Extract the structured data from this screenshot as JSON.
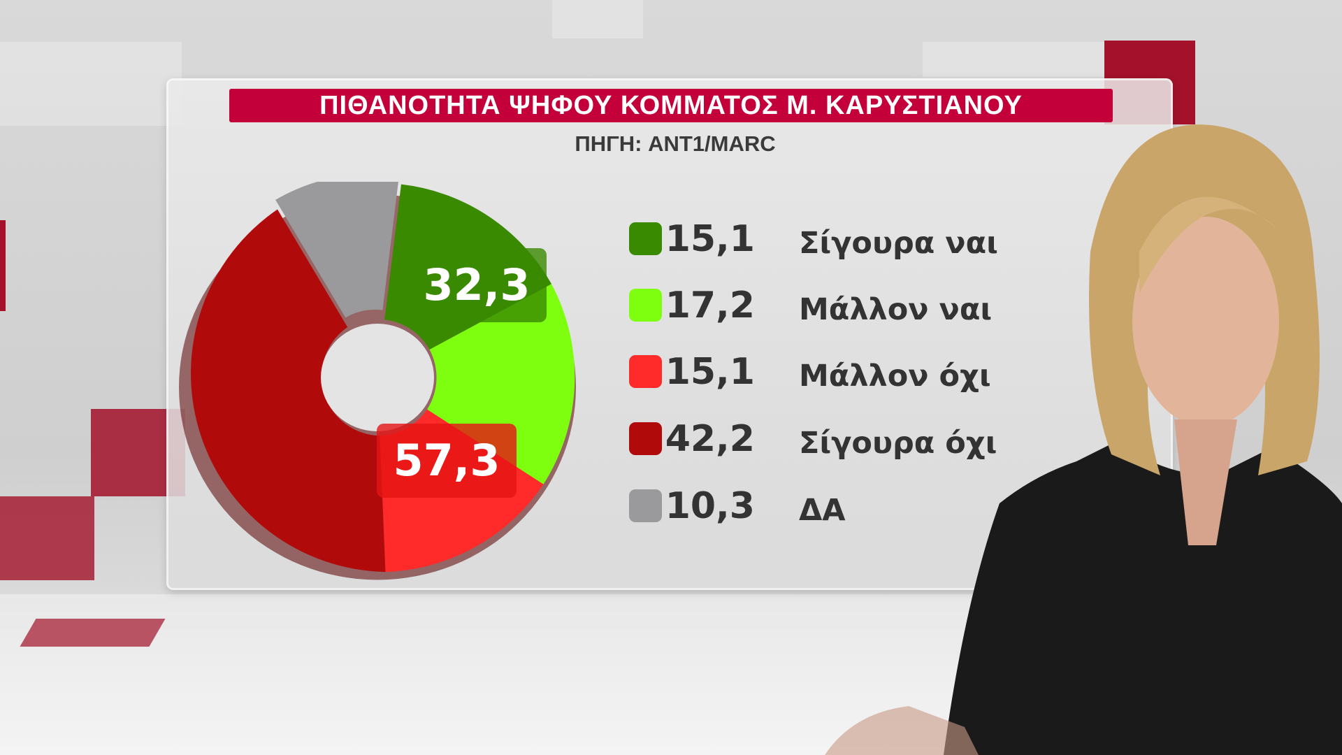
{
  "title": "ΠΙΘΑΝΟΤΗΤΑ ΨΗΦΟΥ ΚΟΜΜΑΤΟΣ Μ. ΚΑΡΥΣΤΙΑΝΟΥ",
  "subtitle": "ΠΗΓΗ: ANT1/MARC",
  "chart_data": {
    "type": "pie",
    "title": "ΠΙΘΑΝΟΤΗΤΑ ΨΗΦΟΥ ΚΟΜΜΑΤΟΣ Μ. ΚΑΡΥΣΤΙΑΝΟΥ",
    "subtitle": "ΠΗΓΗ: ANT1/MARC",
    "donut": true,
    "legend_placement": "right",
    "slices": [
      {
        "label": "Σίγουρα ναι",
        "value": 15.1,
        "value_text": "15,1",
        "color": "#3a8a00"
      },
      {
        "label": "Μάλλον ναι",
        "value": 17.2,
        "value_text": "17,2",
        "color": "#7fff10"
      },
      {
        "label": "Μάλλον όχι",
        "value": 15.1,
        "value_text": "15,1",
        "color": "#ff2a2a"
      },
      {
        "label": "Σίγουρα όχι",
        "value": 42.2,
        "value_text": "42,2",
        "color": "#b00a0a"
      },
      {
        "label": "ΔΑ",
        "value": 10.3,
        "value_text": "10,3",
        "color": "#9a9a9c"
      }
    ],
    "annotations": [
      {
        "text": "32,3",
        "color": "#3a8a00"
      },
      {
        "text": "57,3",
        "color": "#ff2a2a"
      }
    ]
  },
  "colors": {
    "title_bg": "#c4003a",
    "accent": "#a3122a"
  }
}
